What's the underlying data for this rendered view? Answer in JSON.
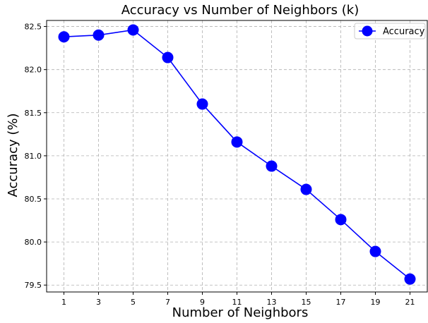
{
  "chart_data": {
    "type": "line",
    "title": "Accuracy vs Number of Neighbors (k)",
    "xlabel": "Number of Neighbors",
    "ylabel": "Accuracy (%)",
    "x": [
      1,
      3,
      5,
      7,
      9,
      11,
      13,
      15,
      17,
      19,
      21
    ],
    "xticks": [
      "1",
      "3",
      "5",
      "7",
      "9",
      "11",
      "13",
      "15",
      "17",
      "19",
      "21"
    ],
    "yticks": [
      "79.5",
      "80.0",
      "80.5",
      "81.0",
      "81.5",
      "82.0",
      "82.5"
    ],
    "ytick_values": [
      79.5,
      80.0,
      80.5,
      81.0,
      81.5,
      82.0,
      82.5
    ],
    "xlim": [
      0,
      22
    ],
    "ylim": [
      79.42,
      82.57
    ],
    "grid": true,
    "legend_position": "top-right",
    "series": [
      {
        "name": "Accuracy",
        "color": "#0000ff",
        "marker": "circle",
        "values": [
          82.38,
          82.4,
          82.46,
          82.14,
          81.6,
          81.16,
          80.88,
          80.61,
          80.26,
          79.89,
          79.57
        ]
      }
    ]
  }
}
